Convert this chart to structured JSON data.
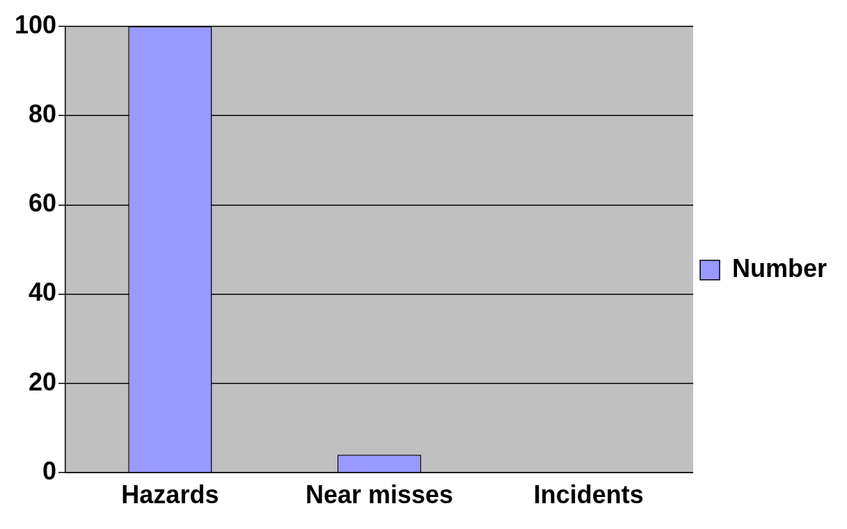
{
  "chart_data": {
    "type": "bar",
    "categories": [
      "Hazards",
      "Near misses",
      "Incidents"
    ],
    "series": [
      {
        "name": "Number",
        "color": "#9999ff",
        "values": [
          100,
          4,
          0
        ]
      }
    ],
    "ylim": [
      0,
      100
    ],
    "yticks": [
      0,
      20,
      40,
      60,
      80,
      100
    ],
    "grid": "y",
    "legend": "right"
  }
}
